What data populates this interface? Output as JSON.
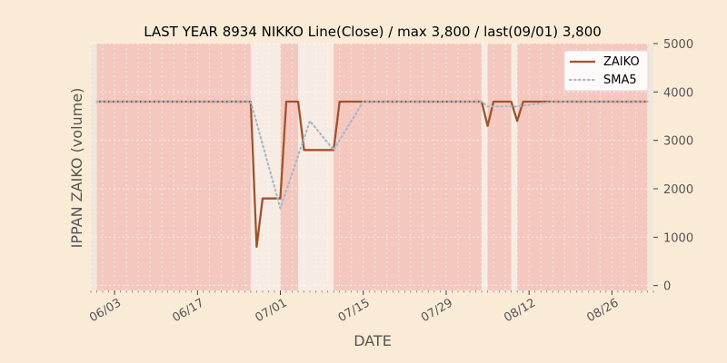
{
  "colors": {
    "background": "#faebd7",
    "plot_background": "#f0e6dc",
    "band_active": "#f4c8bf",
    "band_inactive": "#f6ece3",
    "zaiko_line": "#a0522d",
    "sma_line": "#a7b8c9",
    "grid": "#ffffff"
  },
  "chart_data": {
    "type": "line",
    "title": "LAST YEAR 8934 NIKKO Line(Close) / max 3,800 / last(09/01) 3,800",
    "xlabel": "DATE",
    "ylabel": "IPPAN ZAIKO (volume)",
    "ylim": [
      -100,
      5000
    ],
    "y_axis_side": "right",
    "yticks": [
      0,
      1000,
      2000,
      3000,
      4000,
      5000
    ],
    "ytick_labels": [
      "0",
      "1000",
      "2000",
      "3000",
      "4000",
      "5000"
    ],
    "x_range": [
      "2023-05-30",
      "2023-09-02"
    ],
    "xticks": [
      "2023-06-03",
      "2023-06-17",
      "2023-07-01",
      "2023-07-15",
      "2023-07-29",
      "2023-08-12",
      "2023-08-26"
    ],
    "xtick_labels": [
      "06/03",
      "06/17",
      "07/01",
      "07/15",
      "07/29",
      "08/12",
      "08/26"
    ],
    "grid": true,
    "legend_position": "top-right",
    "series": [
      {
        "name": "ZAIKO",
        "style": "solid",
        "points": [
          [
            "2023-05-31",
            3800
          ],
          [
            "2023-06-26",
            3800
          ],
          [
            "2023-06-27",
            800
          ],
          [
            "2023-06-28",
            1800
          ],
          [
            "2023-07-01",
            1800
          ],
          [
            "2023-07-02",
            3800
          ],
          [
            "2023-07-04",
            3800
          ],
          [
            "2023-07-05",
            2800
          ],
          [
            "2023-07-10",
            2800
          ],
          [
            "2023-07-11",
            3800
          ],
          [
            "2023-08-04",
            3800
          ],
          [
            "2023-08-05",
            3300
          ],
          [
            "2023-08-06",
            3800
          ],
          [
            "2023-08-09",
            3800
          ],
          [
            "2023-08-10",
            3400
          ],
          [
            "2023-08-11",
            3800
          ],
          [
            "2023-09-01",
            3800
          ]
        ]
      },
      {
        "name": "SMA5",
        "style": "dotted",
        "points": [
          [
            "2023-05-31",
            3800
          ],
          [
            "2023-06-26",
            3800
          ],
          [
            "2023-07-01",
            1600
          ],
          [
            "2023-07-06",
            3400
          ],
          [
            "2023-07-10",
            2800
          ],
          [
            "2023-07-15",
            3800
          ],
          [
            "2023-08-04",
            3800
          ],
          [
            "2023-08-05",
            3700
          ],
          [
            "2023-08-10",
            3700
          ],
          [
            "2023-08-16",
            3800
          ],
          [
            "2023-09-01",
            3800
          ]
        ]
      }
    ],
    "shaded_regions": [
      {
        "start": "2023-05-31",
        "end": "2023-06-26",
        "level": "high"
      },
      {
        "start": "2023-06-26",
        "end": "2023-07-01",
        "level": "low"
      },
      {
        "start": "2023-07-01",
        "end": "2023-07-04",
        "level": "high"
      },
      {
        "start": "2023-07-04",
        "end": "2023-07-10",
        "level": "low"
      },
      {
        "start": "2023-07-10",
        "end": "2023-08-04",
        "level": "high"
      },
      {
        "start": "2023-08-04",
        "end": "2023-08-05",
        "level": "low"
      },
      {
        "start": "2023-08-05",
        "end": "2023-08-09",
        "level": "high"
      },
      {
        "start": "2023-08-09",
        "end": "2023-08-10",
        "level": "low"
      },
      {
        "start": "2023-08-10",
        "end": "2023-09-01",
        "level": "high"
      }
    ]
  }
}
